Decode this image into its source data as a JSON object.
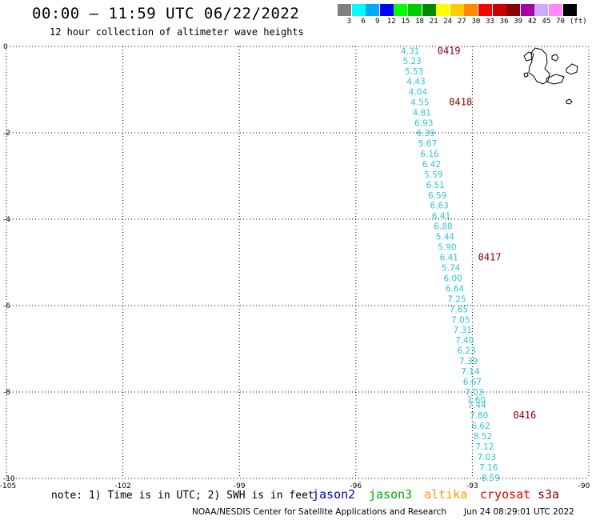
{
  "header": {
    "title": "00:00 – 11:59 UTC 06/22/2022",
    "subtitle": "12 hour collection of altimeter wave heights"
  },
  "legend": {
    "unit": "(ft)",
    "bins": [
      {
        "label": "3",
        "color": "#808080"
      },
      {
        "label": "6",
        "color": "#00ffff"
      },
      {
        "label": "9",
        "color": "#00aaff"
      },
      {
        "label": "12",
        "color": "#0000ff"
      },
      {
        "label": "15",
        "color": "#00ff00"
      },
      {
        "label": "18",
        "color": "#00cc00"
      },
      {
        "label": "21",
        "color": "#008800"
      },
      {
        "label": "24",
        "color": "#ffff00"
      },
      {
        "label": "27",
        "color": "#ffcc00"
      },
      {
        "label": "30",
        "color": "#ff8800"
      },
      {
        "label": "33",
        "color": "#ff0000"
      },
      {
        "label": "36",
        "color": "#cc0000"
      },
      {
        "label": "39",
        "color": "#880000"
      },
      {
        "label": "42",
        "color": "#aa00aa"
      },
      {
        "label": "45",
        "color": "#ccaaff"
      },
      {
        "label": "70",
        "color": "#ff88ff"
      },
      {
        "label": "",
        "color": "#000000"
      }
    ]
  },
  "map": {
    "lon_range": [
      -105,
      -90
    ],
    "lat_range": [
      -10,
      0
    ],
    "x_ticks": [
      "-105",
      "-102",
      "-99",
      "-96",
      "-93",
      "-90"
    ],
    "x_tick_values": [
      -105,
      -102,
      -99,
      -96,
      -93,
      -90
    ],
    "y_ticks": [
      "0",
      "-2",
      "-4",
      "-6",
      "-8",
      "-10"
    ],
    "y_tick_values": [
      0,
      -2,
      -4,
      -6,
      -8,
      -10
    ],
    "grid": "dotted"
  },
  "chart_data": {
    "type": "scatter",
    "satellite": "altika",
    "points": [
      {
        "lon": -94.6,
        "lat": -0.1,
        "swh": "4.31"
      },
      {
        "lon": -94.55,
        "lat": -0.33,
        "swh": "5.23"
      },
      {
        "lon": -94.5,
        "lat": -0.57,
        "swh": "5.53"
      },
      {
        "lon": -94.45,
        "lat": -0.81,
        "swh": "4.43"
      },
      {
        "lon": -94.4,
        "lat": -1.05,
        "swh": "4.04"
      },
      {
        "lon": -94.35,
        "lat": -1.29,
        "swh": "4.55"
      },
      {
        "lon": -94.3,
        "lat": -1.53,
        "swh": "4.81"
      },
      {
        "lon": -94.25,
        "lat": -1.77,
        "swh": "6.93"
      },
      {
        "lon": -94.2,
        "lat": -2.0,
        "swh": "6.39"
      },
      {
        "lon": -94.15,
        "lat": -2.24,
        "swh": "5.67"
      },
      {
        "lon": -94.1,
        "lat": -2.48,
        "swh": "6.16"
      },
      {
        "lon": -94.05,
        "lat": -2.72,
        "swh": "6.42"
      },
      {
        "lon": -94.0,
        "lat": -2.96,
        "swh": "5.59"
      },
      {
        "lon": -93.95,
        "lat": -3.2,
        "swh": "6.51"
      },
      {
        "lon": -93.9,
        "lat": -3.44,
        "swh": "6.59"
      },
      {
        "lon": -93.85,
        "lat": -3.68,
        "swh": "6.63"
      },
      {
        "lon": -93.8,
        "lat": -3.92,
        "swh": "6.41"
      },
      {
        "lon": -93.75,
        "lat": -4.16,
        "swh": "6.88"
      },
      {
        "lon": -93.7,
        "lat": -4.4,
        "swh": "5.44"
      },
      {
        "lon": -93.65,
        "lat": -4.64,
        "swh": "5.90"
      },
      {
        "lon": -93.6,
        "lat": -4.88,
        "swh": "6.41"
      },
      {
        "lon": -93.55,
        "lat": -5.12,
        "swh": "5.74"
      },
      {
        "lon": -93.5,
        "lat": -5.36,
        "swh": "6.00"
      },
      {
        "lon": -93.45,
        "lat": -5.6,
        "swh": "6.64"
      },
      {
        "lon": -93.4,
        "lat": -5.84,
        "swh": "7.25"
      },
      {
        "lon": -93.35,
        "lat": -6.08,
        "swh": "7.65"
      },
      {
        "lon": -93.3,
        "lat": -6.32,
        "swh": "7.05"
      },
      {
        "lon": -93.25,
        "lat": -6.56,
        "swh": "7.31"
      },
      {
        "lon": -93.2,
        "lat": -6.8,
        "swh": "7.40"
      },
      {
        "lon": -93.15,
        "lat": -7.04,
        "swh": "6.23"
      },
      {
        "lon": -93.1,
        "lat": -7.28,
        "swh": "7.39"
      },
      {
        "lon": -93.05,
        "lat": -7.52,
        "swh": "7.14"
      },
      {
        "lon": -93.0,
        "lat": -7.76,
        "swh": "6.67"
      },
      {
        "lon": -92.95,
        "lat": -8.0,
        "swh": "7.03"
      },
      {
        "lon": -92.9,
        "lat": -8.18,
        "swh": "7.60"
      },
      {
        "lon": -92.88,
        "lat": -8.3,
        "swh": "7.44"
      },
      {
        "lon": -92.83,
        "lat": -8.54,
        "swh": "7.80"
      },
      {
        "lon": -92.78,
        "lat": -8.78,
        "swh": "6.62"
      },
      {
        "lon": -92.73,
        "lat": -9.02,
        "swh": "8.52"
      },
      {
        "lon": -92.68,
        "lat": -9.26,
        "swh": "7.12"
      },
      {
        "lon": -92.63,
        "lat": -9.5,
        "swh": "7.03"
      },
      {
        "lon": -92.58,
        "lat": -9.74,
        "swh": "7.16"
      },
      {
        "lon": -92.53,
        "lat": -9.98,
        "swh": "8.59"
      }
    ],
    "passes": [
      {
        "label": "0419",
        "time": "04:19",
        "lon": -93.9,
        "lat": -0.1
      },
      {
        "label": "0418",
        "time": "04:18",
        "lon": -93.6,
        "lat": -1.29
      },
      {
        "label": "0417",
        "time": "04:17",
        "lon": -92.85,
        "lat": -4.88
      },
      {
        "label": "0416",
        "time": "04:16",
        "lon": -91.95,
        "lat": -8.54
      }
    ]
  },
  "note": "note: 1) Time is in UTC; 2) SWH is in feet",
  "satellites": [
    {
      "name": "jason2",
      "color": "#0000cc"
    },
    {
      "name": "jason3",
      "color": "#00aa00"
    },
    {
      "name": "altika",
      "color": "#ff9900"
    },
    {
      "name": "cryosat",
      "color": "#dd0000"
    },
    {
      "name": "s3a",
      "color": "#880000"
    }
  ],
  "footer": {
    "center": "NOAA/NESDIS Center for Satellite Applications and Research",
    "timestamp": "Jun 24 08:29:01 UTC 2022"
  }
}
